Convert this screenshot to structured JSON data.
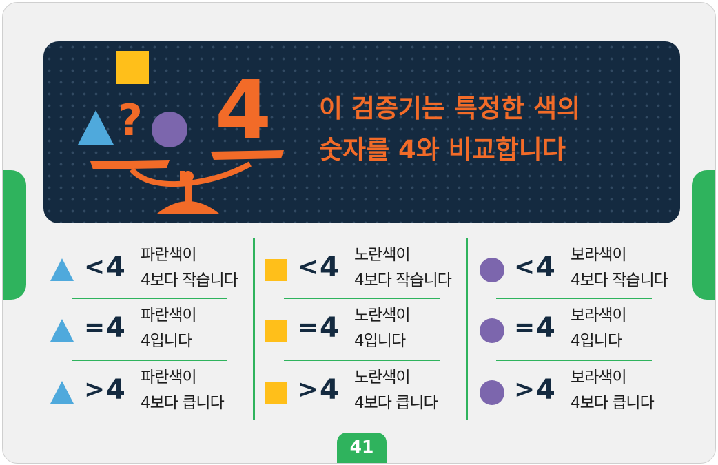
{
  "headline": {
    "line1": "이 검증기는 특정한 색의",
    "line2": "숫자를 4와 비교합니다"
  },
  "illustration": {
    "question_mark": "?",
    "number": "4"
  },
  "colors": {
    "blue": "#4fa9dc",
    "yellow": "#ffbf1a",
    "purple": "#7c66ad",
    "orange": "#f26b28",
    "navy": "#142a40",
    "green": "#2fb35d"
  },
  "columns": [
    {
      "shape": "triangle",
      "rows": [
        {
          "op": "<",
          "num": "4",
          "line1": "파란색이",
          "line2": "4보다 작습니다"
        },
        {
          "op": "=",
          "num": "4",
          "line1": "파란색이",
          "line2": "4입니다"
        },
        {
          "op": ">",
          "num": "4",
          "line1": "파란색이",
          "line2": "4보다 큽니다"
        }
      ]
    },
    {
      "shape": "square",
      "rows": [
        {
          "op": "<",
          "num": "4",
          "line1": "노란색이",
          "line2": "4보다 작습니다"
        },
        {
          "op": "=",
          "num": "4",
          "line1": "노란색이",
          "line2": "4입니다"
        },
        {
          "op": ">",
          "num": "4",
          "line1": "노란색이",
          "line2": "4보다 큽니다"
        }
      ]
    },
    {
      "shape": "circle",
      "rows": [
        {
          "op": "<",
          "num": "4",
          "line1": "보라색이",
          "line2": "4보다 작습니다"
        },
        {
          "op": "=",
          "num": "4",
          "line1": "보라색이",
          "line2": "4입니다"
        },
        {
          "op": ">",
          "num": "4",
          "line1": "보라색이",
          "line2": "4보다 큽니다"
        }
      ]
    }
  ],
  "page_number": "41"
}
